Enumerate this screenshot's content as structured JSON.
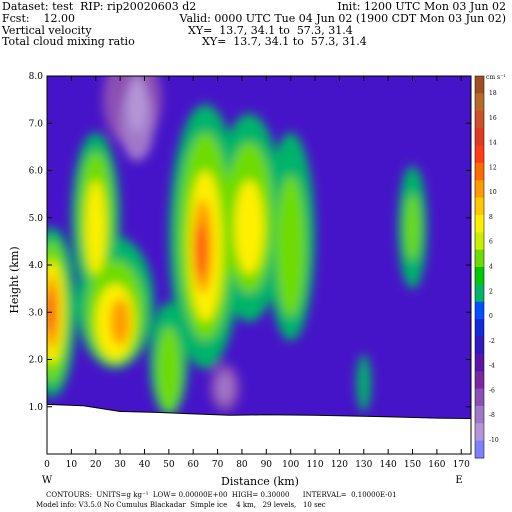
{
  "header": {
    "dataset": "Dataset: test  RIP: rip20020603 d2",
    "init": "Init: 1200 UTC Mon 03 Jun 02",
    "fcst": "Fcst:    12.00",
    "valid": "Valid: 0000 UTC Tue 04 Jun 02 (1900 CDT Mon 03 Jun 02)",
    "field1": "Vertical velocity",
    "xy1": "XY=  13.7, 34.1 to  57.3, 31.4",
    "field2": "Total cloud mixing ratio",
    "xy2": "XY=  13.7, 34.1 to  57.3, 31.4"
  },
  "footer": {
    "contours": "CONTOURS:  UNITS=g kg⁻¹  LOW= 0.00000E+00  HIGH= 0.30000      INTERVAL=  0.10000E-01",
    "model_info": "Model info: V3.5.0 No Cumulus Blackadar  Simple ice    4 km,   29 levels,   10 sec"
  },
  "chart_data": {
    "type": "heatmap",
    "xlabel": "Distance (km)",
    "ylabel": "Height (km)",
    "x_ticks": [
      "0",
      "10",
      "20",
      "30",
      "40",
      "50",
      "60",
      "70",
      "80",
      "90",
      "100",
      "110",
      "120",
      "130",
      "140",
      "150",
      "160",
      "170"
    ],
    "y_ticks": [
      "1.0",
      "2.0",
      "3.0",
      "4.0",
      "5.0",
      "6.0",
      "7.0",
      "8.0"
    ],
    "xlim": [
      0,
      174
    ],
    "ylim": [
      0,
      8.0
    ],
    "cross_section_ends": {
      "left": "W",
      "right": "E"
    },
    "colorbar": {
      "unit": "cm s⁻¹",
      "labels": [
        "18",
        "16",
        "14",
        "12",
        "10",
        "8",
        "6",
        "4",
        "2",
        "0",
        "-2",
        "-4",
        "-6",
        "-8",
        "-10"
      ],
      "colors": [
        "#a05020",
        "#b86a28",
        "#cc5028",
        "#e03a20",
        "#ff3c14",
        "#ff6a00",
        "#ff9a00",
        "#ffc800",
        "#fff000",
        "#c8f000",
        "#6edc00",
        "#00c800",
        "#00b46a",
        "#0050ff",
        "#1428dc",
        "#3218c0",
        "#5a14a8",
        "#7828a0",
        "#8c50b4",
        "#a078c8",
        "#b496d8",
        "#8080ff"
      ]
    },
    "terrain": [
      [
        0,
        1.05
      ],
      [
        15,
        1.02
      ],
      [
        30,
        0.9
      ],
      [
        45,
        0.88
      ],
      [
        60,
        0.85
      ],
      [
        75,
        0.82
      ],
      [
        90,
        0.83
      ],
      [
        110,
        0.82
      ],
      [
        130,
        0.8
      ],
      [
        145,
        0.78
      ],
      [
        160,
        0.76
      ],
      [
        174,
        0.75
      ]
    ],
    "field_background": "#4614c8",
    "blobs": [
      {
        "x": 2,
        "y": 3.0,
        "rx": 10,
        "ry": 1.8,
        "c": "#00b46a"
      },
      {
        "x": 20,
        "y": 5.0,
        "rx": 10,
        "ry": 1.8,
        "c": "#00b46a"
      },
      {
        "x": 28,
        "y": 3.2,
        "rx": 16,
        "ry": 1.4,
        "c": "#00b46a"
      },
      {
        "x": 50,
        "y": 2.0,
        "rx": 8,
        "ry": 1.2,
        "c": "#00b46a"
      },
      {
        "x": 65,
        "y": 4.6,
        "rx": 15,
        "ry": 2.8,
        "c": "#00b46a"
      },
      {
        "x": 83,
        "y": 5.0,
        "rx": 14,
        "ry": 2.2,
        "c": "#00b46a"
      },
      {
        "x": 100,
        "y": 4.6,
        "rx": 10,
        "ry": 2.2,
        "c": "#00b46a"
      },
      {
        "x": 150,
        "y": 4.8,
        "rx": 6,
        "ry": 1.3,
        "c": "#00b46a"
      },
      {
        "x": 130,
        "y": 1.5,
        "rx": 3,
        "ry": 0.6,
        "c": "#00b46a"
      },
      {
        "x": 2,
        "y": 3.0,
        "rx": 7,
        "ry": 1.5,
        "c": "#6edc00"
      },
      {
        "x": 20,
        "y": 5.0,
        "rx": 7,
        "ry": 1.4,
        "c": "#6edc00"
      },
      {
        "x": 28,
        "y": 3.0,
        "rx": 12,
        "ry": 1.1,
        "c": "#6edc00"
      },
      {
        "x": 50,
        "y": 1.8,
        "rx": 5,
        "ry": 0.9,
        "c": "#6edc00"
      },
      {
        "x": 65,
        "y": 4.6,
        "rx": 11,
        "ry": 2.2,
        "c": "#6edc00"
      },
      {
        "x": 83,
        "y": 5.0,
        "rx": 10,
        "ry": 1.6,
        "c": "#6edc00"
      },
      {
        "x": 100,
        "y": 4.4,
        "rx": 6,
        "ry": 1.5,
        "c": "#6edc00"
      },
      {
        "x": 150,
        "y": 4.8,
        "rx": 3,
        "ry": 0.7,
        "c": "#6edc00"
      },
      {
        "x": 2,
        "y": 3.0,
        "rx": 5,
        "ry": 1.1,
        "c": "#fff000"
      },
      {
        "x": 20,
        "y": 4.8,
        "rx": 4,
        "ry": 1.0,
        "c": "#fff000"
      },
      {
        "x": 28,
        "y": 2.8,
        "rx": 8,
        "ry": 0.8,
        "c": "#fff000"
      },
      {
        "x": 65,
        "y": 4.4,
        "rx": 7,
        "ry": 1.6,
        "c": "#fff000"
      },
      {
        "x": 83,
        "y": 4.8,
        "rx": 6,
        "ry": 1.0,
        "c": "#fff000"
      },
      {
        "x": 2,
        "y": 3.0,
        "rx": 3,
        "ry": 0.8,
        "c": "#ff9a00"
      },
      {
        "x": 30,
        "y": 2.8,
        "rx": 4,
        "ry": 0.5,
        "c": "#ff9a00"
      },
      {
        "x": 64,
        "y": 4.4,
        "rx": 4,
        "ry": 1.0,
        "c": "#ff9a00"
      },
      {
        "x": 1,
        "y": 3.0,
        "rx": 2,
        "ry": 0.5,
        "c": "#ff3c14"
      },
      {
        "x": 63,
        "y": 4.3,
        "rx": 2,
        "ry": 0.6,
        "c": "#ff3c14"
      },
      {
        "x": 35,
        "y": 7.5,
        "rx": 12,
        "ry": 1.0,
        "c": "#8c50b4"
      },
      {
        "x": 37,
        "y": 7.0,
        "rx": 7,
        "ry": 0.8,
        "c": "#a078c8"
      },
      {
        "x": 37,
        "y": 7.4,
        "rx": 4,
        "ry": 0.6,
        "c": "#b496d8"
      },
      {
        "x": 73,
        "y": 1.4,
        "rx": 6,
        "ry": 0.5,
        "c": "#8c50b4"
      },
      {
        "x": 73,
        "y": 1.4,
        "rx": 3,
        "ry": 0.3,
        "c": "#a078c8"
      }
    ]
  }
}
